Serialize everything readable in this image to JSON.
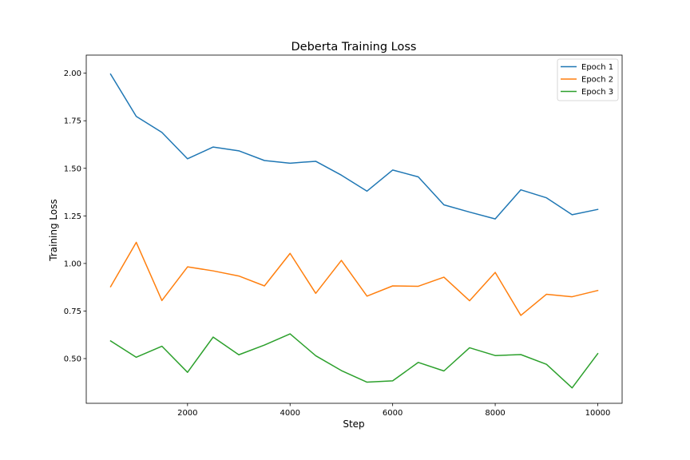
{
  "chart_data": {
    "type": "line",
    "title": "Deberta Training Loss",
    "xlabel": "Step",
    "ylabel": "Training Loss",
    "xlim": [
      25,
      10475
    ],
    "ylim": [
      0.265,
      2.095
    ],
    "xticks": [
      2000,
      4000,
      6000,
      8000,
      10000
    ],
    "xtick_labels": [
      "2000",
      "4000",
      "6000",
      "8000",
      "10000"
    ],
    "yticks": [
      0.5,
      0.75,
      1.0,
      1.25,
      1.5,
      1.75,
      2.0
    ],
    "ytick_labels": [
      "0.50",
      "0.75",
      "1.00",
      "1.25",
      "1.50",
      "1.75",
      "2.00"
    ],
    "grid": false,
    "legend_position": "top-right",
    "x": [
      500,
      1000,
      1500,
      2000,
      2500,
      3000,
      3500,
      4000,
      4500,
      5000,
      5500,
      6000,
      6500,
      7000,
      7500,
      8000,
      8500,
      9000,
      9500,
      10000
    ],
    "series": [
      {
        "name": "Epoch 1",
        "color": "#1f77b4",
        "values": [
          1.995,
          1.773,
          1.689,
          1.55,
          1.612,
          1.592,
          1.541,
          1.527,
          1.537,
          1.464,
          1.38,
          1.491,
          1.455,
          1.308,
          1.27,
          1.234,
          1.387,
          1.345,
          1.256,
          1.284
        ]
      },
      {
        "name": "Epoch 2",
        "color": "#ff7f0e",
        "values": [
          0.878,
          1.111,
          0.805,
          0.982,
          0.961,
          0.934,
          0.882,
          1.053,
          0.843,
          1.016,
          0.828,
          0.882,
          0.88,
          0.928,
          0.804,
          0.953,
          0.727,
          0.838,
          0.825,
          0.858
        ]
      },
      {
        "name": "Epoch 3",
        "color": "#2ca02c",
        "values": [
          0.593,
          0.507,
          0.565,
          0.428,
          0.613,
          0.52,
          0.571,
          0.63,
          0.515,
          0.437,
          0.376,
          0.383,
          0.48,
          0.435,
          0.557,
          0.516,
          0.521,
          0.47,
          0.346,
          0.526
        ]
      }
    ]
  }
}
